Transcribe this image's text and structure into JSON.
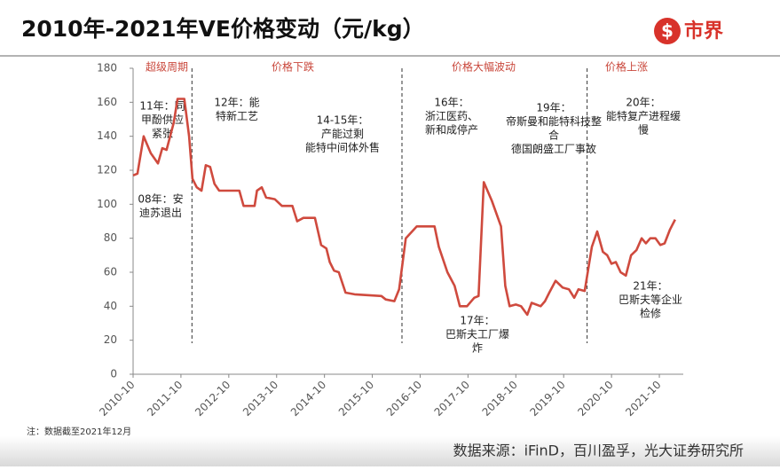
{
  "title": "2010年-2021年VE价格变动（元/kg）",
  "logo": "市界",
  "note": "注：数据截至2021年12月",
  "source": "数据来源：iFinD，百川盈孚，光大证券研究所",
  "chart_data": {
    "type": "line",
    "color": "#cf4a3e",
    "x": [
      2010.75,
      2010.84,
      2010.97,
      2011.12,
      2011.27,
      2011.36,
      2011.45,
      2011.6,
      2011.68,
      2011.82,
      2011.92,
      2011.99,
      2012.08,
      2012.18,
      2012.27,
      2012.36,
      2012.45,
      2012.55,
      2012.82,
      2012.97,
      2013.06,
      2013.29,
      2013.34,
      2013.44,
      2013.53,
      2013.71,
      2013.86,
      2014.08,
      2014.18,
      2014.31,
      2014.55,
      2014.68,
      2014.79,
      2014.86,
      2014.95,
      2015.05,
      2015.19,
      2015.38,
      2015.94,
      2016.03,
      2016.21,
      2016.31,
      2016.45,
      2016.68,
      2017.05,
      2017.14,
      2017.32,
      2017.47,
      2017.58,
      2017.73,
      2017.88,
      2017.97,
      2018.08,
      2018.25,
      2018.44,
      2018.53,
      2018.62,
      2018.75,
      2018.86,
      2018.99,
      2019.08,
      2019.27,
      2019.36,
      2019.45,
      2019.58,
      2019.73,
      2019.86,
      2019.97,
      2020.06,
      2020.19,
      2020.34,
      2020.45,
      2020.57,
      2020.66,
      2020.75,
      2020.84,
      2020.94,
      2021.05,
      2021.16,
      2021.27,
      2021.38,
      2021.47,
      2021.56,
      2021.67,
      2021.77,
      2021.86,
      2021.97,
      2022.08
    ],
    "values": [
      117,
      118,
      140,
      130,
      124,
      133,
      132,
      148,
      162,
      162,
      140,
      115,
      110,
      108,
      123,
      122,
      112,
      108,
      108,
      108,
      99,
      99,
      108,
      110,
      104,
      103,
      99,
      99,
      90,
      92,
      92,
      76,
      74,
      66,
      61,
      60,
      48,
      47,
      46,
      44,
      43,
      50,
      80,
      87,
      87,
      75,
      60,
      52,
      40,
      40,
      45,
      46,
      113,
      102,
      87,
      52,
      40,
      41,
      40,
      35,
      42,
      40,
      43,
      48,
      55,
      51,
      50,
      45,
      50,
      49,
      75,
      84,
      72,
      70,
      65,
      66,
      60,
      58,
      70,
      73,
      80,
      77,
      80,
      80,
      76,
      77,
      85,
      91
    ],
    "xlim": [
      2010.75,
      2022.25
    ],
    "xticks": [
      {
        "value": 2010.75,
        "label": "2010-10"
      },
      {
        "value": 2011.75,
        "label": "2011-10"
      },
      {
        "value": 2012.75,
        "label": "2012-10"
      },
      {
        "value": 2013.75,
        "label": "2013-10"
      },
      {
        "value": 2014.75,
        "label": "2014-10"
      },
      {
        "value": 2015.75,
        "label": "2015-10"
      },
      {
        "value": 2016.75,
        "label": "2016-10"
      },
      {
        "value": 2017.75,
        "label": "2017-10"
      },
      {
        "value": 2018.75,
        "label": "2018-10"
      },
      {
        "value": 2019.75,
        "label": "2019-10"
      },
      {
        "value": 2020.75,
        "label": "2020-10"
      },
      {
        "value": 2021.75,
        "label": "2021-10"
      }
    ],
    "ylim": [
      0,
      180
    ],
    "yticks": [
      0,
      20,
      40,
      60,
      80,
      100,
      120,
      140,
      160,
      180
    ],
    "dividers": [
      2011.98,
      2016.37,
      2020.24
    ],
    "phases": [
      "超级周期",
      "价格下跌",
      "价格大幅波动",
      "价格上涨"
    ],
    "annotations": [
      [
        "11年：同",
        "甲酚供应",
        "紧张"
      ],
      [
        "08年：安",
        "迪苏退出"
      ],
      [
        "12年：能",
        "特新工艺"
      ],
      [
        "14-15年：",
        "产能过剩",
        "能特中间体外售"
      ],
      [
        "16年：",
        "浙江医药、",
        "新和成停产"
      ],
      [
        "19年：",
        "帝斯曼和能特科技整",
        "合",
        "德国朗盛工厂事故"
      ],
      [
        "20年：",
        "能特复产进程缓",
        "慢"
      ],
      [
        "17年：",
        "巴斯夫工厂爆",
        "炸"
      ],
      [
        "21年：",
        "巴斯夫等企业",
        "检修"
      ]
    ]
  }
}
